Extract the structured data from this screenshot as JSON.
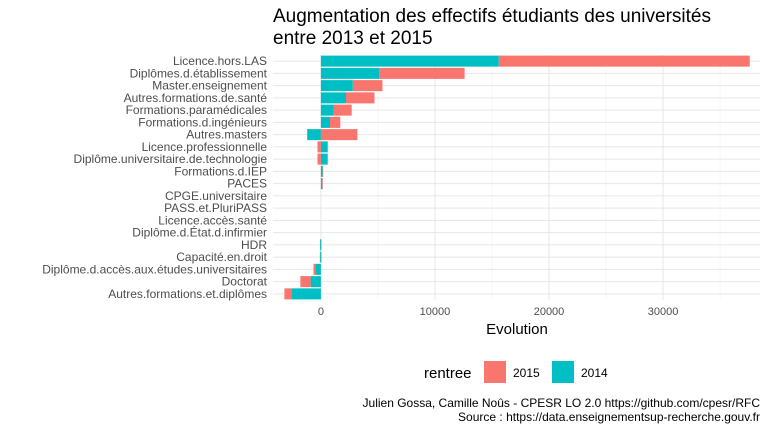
{
  "chart_data": {
    "type": "bar",
    "orientation": "horizontal",
    "stacked": true,
    "title": "Augmentation des effectifs étudiants des universités entre 2013 et 2015",
    "title_lines": [
      "Augmentation des effectifs étudiants des universités",
      "entre 2013 et 2015"
    ],
    "xlabel": "Evolution",
    "ylabel": "",
    "xlim": [
      -4200,
      38500
    ],
    "xticks": [
      0,
      10000,
      20000,
      30000
    ],
    "xtick_labels": [
      "0",
      "10000",
      "20000",
      "30000"
    ],
    "grid": true,
    "legend_position": "bottom",
    "legend_title": "rentree",
    "categories": [
      "Licence.hors.LAS",
      "Diplômes.d.établissement",
      "Master.enseignement",
      "Autres.formations.de.santé",
      "Formations.paramédicales",
      "Formations.d.ingénieurs",
      "Autres.masters",
      "Licence.professionnelle",
      "Diplôme.universitaire.de.technologie",
      "Formations.d.IEP",
      "PACES",
      "CPGE.universitaire",
      "PASS.et.PluriPASS",
      "Licence.accès.santé",
      "Diplôme.d.État.d.infirmier",
      "HDR",
      "Capacité.en.droit",
      "Diplôme.d.accès.aux.études.universitaires",
      "Doctorat",
      "Autres.formations.et.diplômes"
    ],
    "series": [
      {
        "name": "2015",
        "color": "#F8766D",
        "values": [
          22000,
          7500,
          2600,
          2500,
          1600,
          900,
          3200,
          -300,
          -300,
          50,
          50,
          0,
          0,
          0,
          0,
          20,
          10,
          -150,
          -900,
          -600
        ]
      },
      {
        "name": "2014",
        "color": "#00BFC4",
        "values": [
          15600,
          5100,
          2800,
          2200,
          1100,
          800,
          -1200,
          600,
          600,
          150,
          120,
          0,
          0,
          0,
          0,
          -80,
          -90,
          -500,
          -900,
          -2600
        ]
      }
    ]
  },
  "caption": {
    "line1": "Julien Gossa, Camille Noûs - CPESR LO 2.0 https://github.com/cpesr/RFC",
    "line2": "Source : https://data.enseignementsup-recherche.gouv.fr"
  }
}
